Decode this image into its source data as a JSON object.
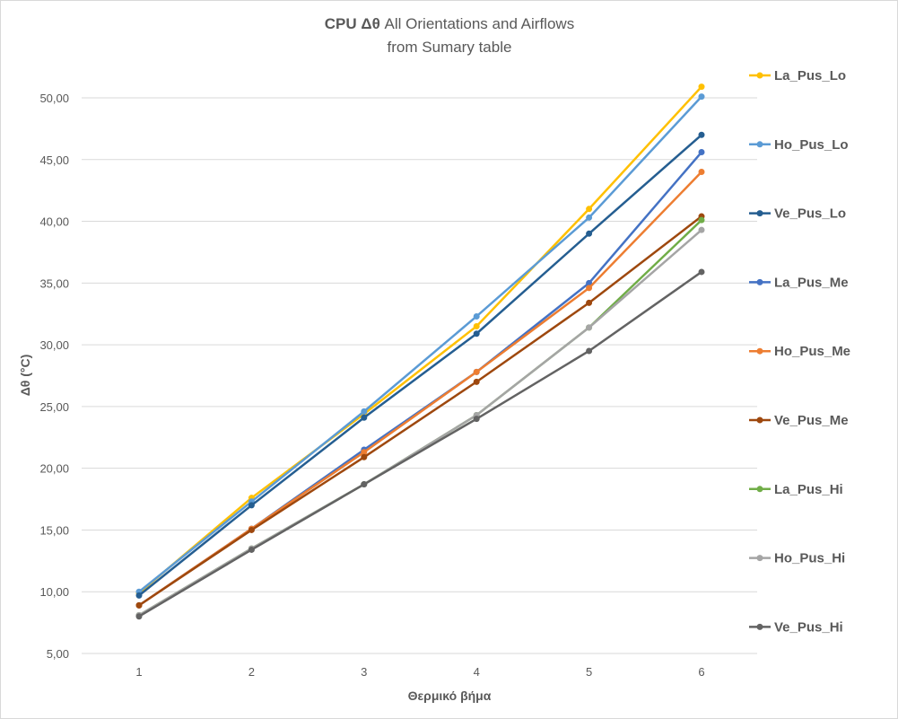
{
  "chart_data": {
    "type": "line",
    "title_line1_bold": "CPU  Δθ",
    "title_line1_rest": " All Orientations and  Airflows",
    "title_line2": "from Sumary table",
    "xlabel": "Θερμικό βήμα",
    "ylabel": "Δθ (°C)",
    "x": [
      1,
      2,
      3,
      4,
      5,
      6
    ],
    "x_tick_labels": [
      "1",
      "2",
      "3",
      "4",
      "5",
      "6"
    ],
    "ylim": [
      5,
      50
    ],
    "y_tick_labels": [
      "5,00",
      "10,00",
      "15,00",
      "20,00",
      "25,00",
      "30,00",
      "35,00",
      "40,00",
      "45,00",
      "50,00"
    ],
    "grid": true,
    "legend_position": "right",
    "series": [
      {
        "name": "La_Pus_Lo",
        "color": "#FFC000",
        "values": [
          9.9,
          17.6,
          24.4,
          31.5,
          41.0,
          50.9
        ]
      },
      {
        "name": "Ho_Pus_Lo",
        "color": "#5B9BD5",
        "values": [
          10.0,
          17.3,
          24.6,
          32.3,
          40.3,
          50.1
        ]
      },
      {
        "name": "Ve_Pus_Lo",
        "color": "#255E91",
        "values": [
          9.7,
          17.0,
          24.1,
          30.9,
          39.0,
          47.0
        ]
      },
      {
        "name": "La_Pus_Me",
        "color": "#4472C4",
        "values": [
          8.9,
          15.1,
          21.5,
          27.8,
          35.0,
          45.6
        ]
      },
      {
        "name": "Ho_Pus_Me",
        "color": "#ED7D31",
        "values": [
          8.9,
          15.1,
          21.3,
          27.8,
          34.6,
          44.0
        ]
      },
      {
        "name": "Ve_Pus_Me",
        "color": "#9E480E",
        "values": [
          8.9,
          15.0,
          20.9,
          27.0,
          33.4,
          40.4
        ]
      },
      {
        "name": "La_Pus_Hi",
        "color": "#70AD47",
        "values": [
          8.1,
          13.5,
          18.7,
          24.3,
          31.4,
          40.1
        ]
      },
      {
        "name": "Ho_Pus_Hi",
        "color": "#A5A5A5",
        "values": [
          8.1,
          13.5,
          18.7,
          24.3,
          31.4,
          39.3
        ]
      },
      {
        "name": "Ve_Pus_Hi",
        "color": "#636363",
        "values": [
          8.0,
          13.4,
          18.7,
          24.0,
          29.5,
          35.9
        ]
      }
    ]
  }
}
